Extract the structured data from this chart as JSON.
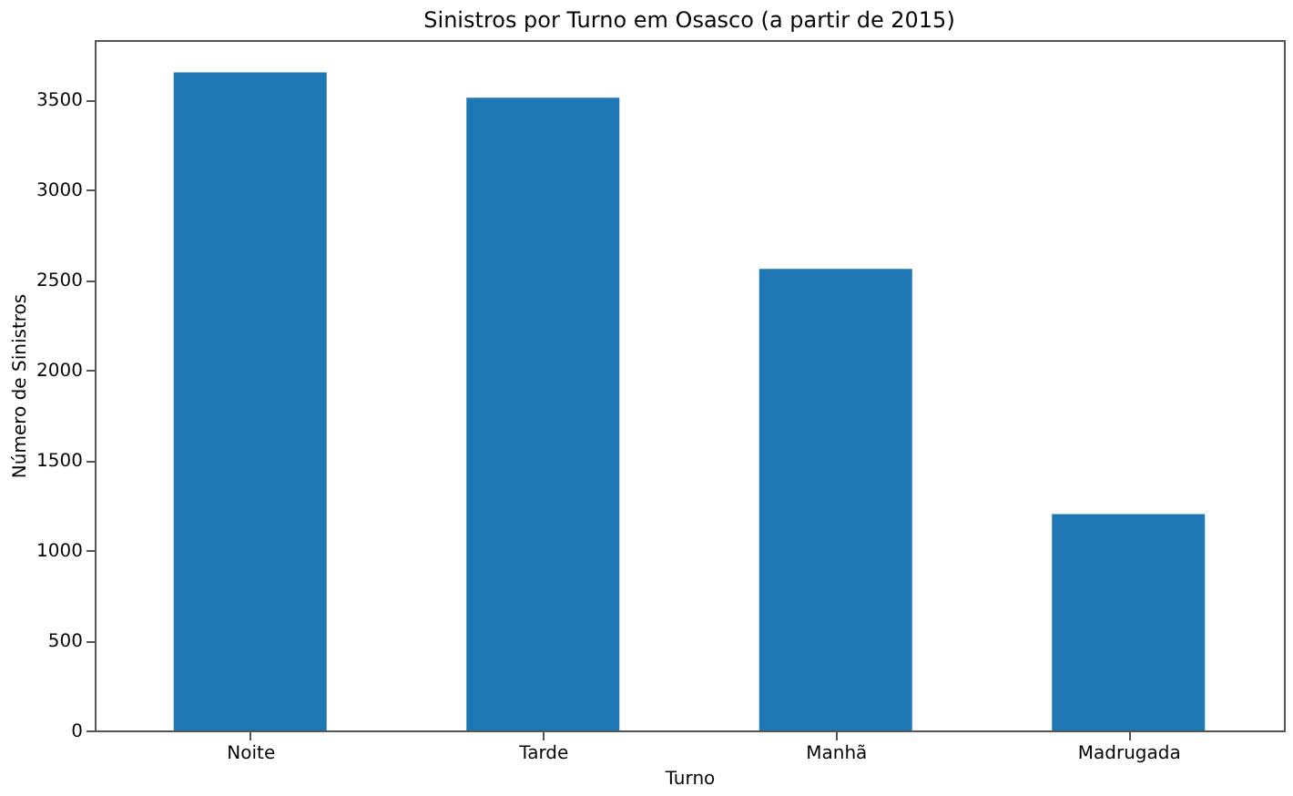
{
  "chart_data": {
    "type": "bar",
    "title": "Sinistros por Turno em Osasco (a partir de 2015)",
    "xlabel": "Turno",
    "ylabel": "Número de Sinistros",
    "categories": [
      "Noite",
      "Tarde",
      "Manhã",
      "Madrugada"
    ],
    "values": [
      3650,
      3510,
      2560,
      1200
    ],
    "color": "#1f77b4",
    "ylim": [
      0,
      3830
    ],
    "yticks": [
      0,
      500,
      1000,
      1500,
      2000,
      2500,
      3000,
      3500
    ],
    "grid": false
  }
}
